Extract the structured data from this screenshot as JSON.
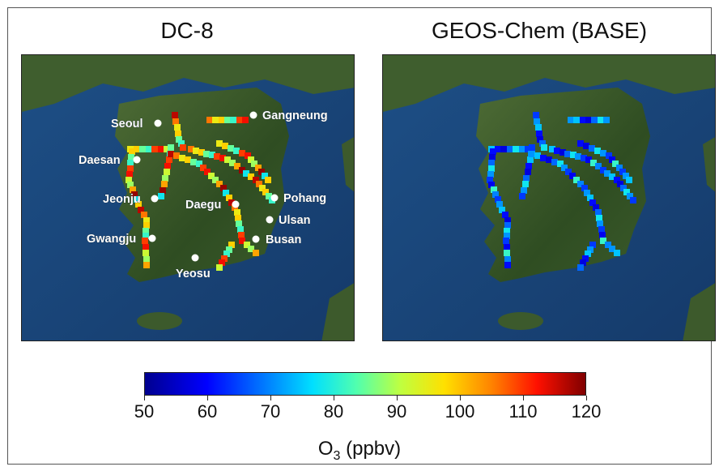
{
  "panels": [
    {
      "title": "DC-8"
    },
    {
      "title": "GEOS-Chem (BASE)"
    }
  ],
  "cities": [
    {
      "name": "Seoul"
    },
    {
      "name": "Gangneung"
    },
    {
      "name": "Daesan"
    },
    {
      "name": "Jeonju"
    },
    {
      "name": "Daegu"
    },
    {
      "name": "Pohang"
    },
    {
      "name": "Ulsan"
    },
    {
      "name": "Gwangju"
    },
    {
      "name": "Busan"
    },
    {
      "name": "Yeosu"
    }
  ],
  "colorbar": {
    "min": 50,
    "max": 120,
    "ticks": [
      "50",
      "60",
      "70",
      "80",
      "90",
      "100",
      "110",
      "120"
    ],
    "label_main": "O",
    "label_sub": "3",
    "label_unit": " (ppbv)",
    "colormap": "jet"
  }
}
